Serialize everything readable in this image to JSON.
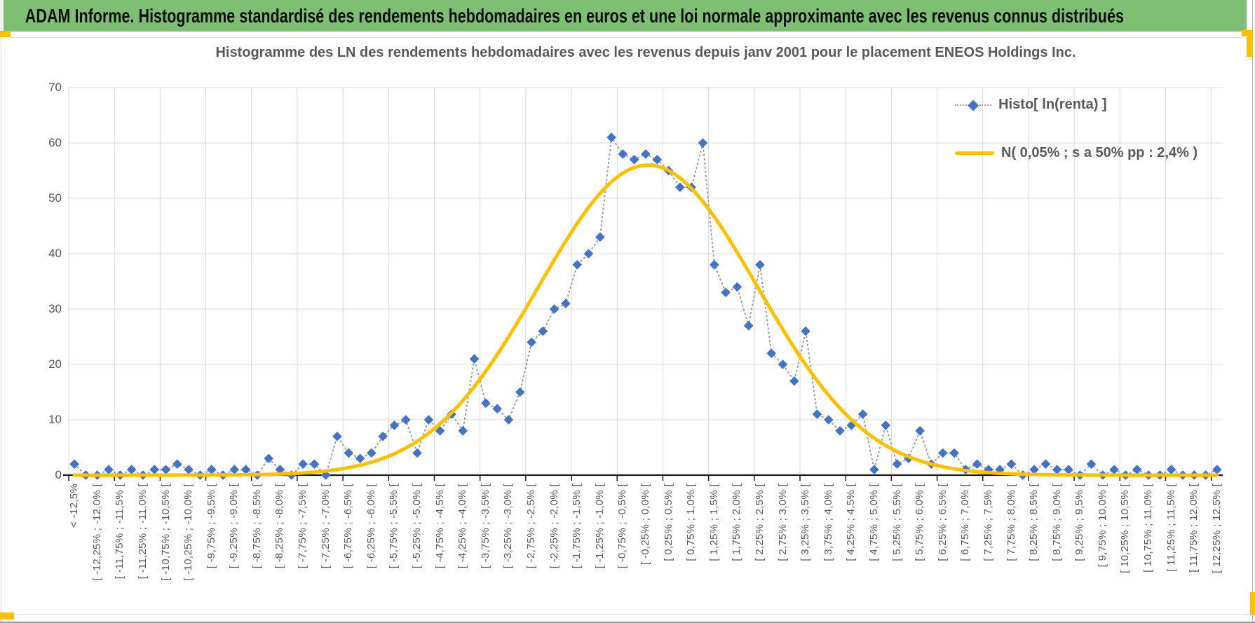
{
  "banner": {
    "title": "ADAM Informe. Histogramme standardisé des rendements hebdomadaires en euros et une loi normale approximante avec les revenus connus distribués",
    "bg_color": "#7EBF73",
    "accent_color": "#FFC000"
  },
  "chart_data": {
    "type": "line",
    "title": "Histogramme des LN des rendements hebdomadaires avec les revenus depuis janv 2001 pour le placement ENEOS Holdings Inc.",
    "ylabel": "",
    "xlabel": "",
    "ylim": [
      0,
      70
    ],
    "y_ticks": [
      0,
      10,
      20,
      30,
      40,
      50,
      60,
      70
    ],
    "grid": {
      "horizontal": true,
      "vertical_every_categories": 4,
      "grid_color": "#d9d9d9",
      "axis_color": "#1a1a1a"
    },
    "legend_position": "upper-right-inside",
    "x_label_every": 2,
    "x_tick_labels": [
      "< -12,5%",
      "[ -12,25% ; -12,0% [",
      "[ -11,75% ; -11,5% [",
      "[ -11,25% ; -11,0% [",
      "[ -10,75% ; -10,5% [",
      "[ -10,25% ; -10,0% [",
      "[ -9,75% ; -9,5% [",
      "[ -9,25% ; -9,0% [",
      "[ -8,75% ; -8,5% [",
      "[ -8,25% ; -8,0% [",
      "[ -7,75% ; -7,5% [",
      "[ -7,25% ; -7,0% [",
      "[ -6,75% ; -6,5% [",
      "[ -6,25% ; -6,0% [",
      "[ -5,75% ; -5,5% [",
      "[ -5,25% ; -5,0% [",
      "[ -4,75% ; -4,5% [",
      "[ -4,25% ; -4,0% [",
      "[ -3,75% ; -3,5% [",
      "[ -3,25% ; -3,0% [",
      "[ -2,75% ; -2,5% [",
      "[ -2,25% ; -2,0% [",
      "[ -1,75% ; -1,5% [",
      "[ -1,25% ; -1,0% [",
      "[ -0,75% ; -0,5% [",
      "[ -0,25% ; 0,0% [",
      "[ 0,25% ; 0,5% [",
      "[ 0,75% ; 1,0% [",
      "[ 1,25% ; 1,5% [",
      "[ 1,75% ; 2,0% [",
      "[ 2,25% ; 2,5% [",
      "[ 2,75% ; 3,0% [",
      "[ 3,25% ; 3,5% [",
      "[ 3,75% ; 4,0% [",
      "[ 4,25% ; 4,5% [",
      "[ 4,75% ; 5,0% [",
      "[ 5,25% ; 5,5% [",
      "[ 5,75% ; 6,0% [",
      "[ 6,25% ; 6,5% [",
      "[ 6,75% ; 7,0% [",
      "[ 7,25% ; 7,5% [",
      "[ 7,75% ; 8,0% [",
      "[ 8,25% ; 8,5% [",
      "[ 8,75% ; 9,0% [",
      "[ 9,25% ; 9,5% [",
      "[ 9,75% ; 10,0% [",
      "[ 10,25% ; 10,5% [",
      "[ 10,75% ; 11,0% [",
      "[ 11,25% ; 11,5% [",
      "[ 11,75% ; 12,0% [",
      "[ 12,25% ; 12,5% ["
    ],
    "bins": {
      "first_label": "< -12,5%",
      "bin_start_pct": -12.5,
      "bin_width_pct": 0.25,
      "bin_count": 101
    },
    "series": [
      {
        "name": "Histo[ ln(renta) ]",
        "type": "line-markers",
        "marker": "diamond",
        "marker_color": "#4472C4",
        "line_color": "#9e9e9e",
        "line_style": "dotted",
        "values": [
          2,
          0,
          0,
          1,
          0,
          1,
          0,
          1,
          1,
          2,
          1,
          0,
          1,
          0,
          1,
          1,
          0,
          3,
          1,
          0,
          2,
          2,
          0,
          7,
          4,
          3,
          4,
          7,
          9,
          10,
          4,
          10,
          8,
          11,
          8,
          21,
          13,
          12,
          10,
          15,
          24,
          26,
          30,
          31,
          38,
          40,
          43,
          61,
          58,
          57,
          58,
          57,
          55,
          52,
          52,
          60,
          38,
          33,
          34,
          27,
          38,
          22,
          20,
          17,
          26,
          11,
          10,
          8,
          9,
          11,
          1,
          9,
          2,
          3,
          8,
          2,
          4,
          4,
          1,
          2,
          1,
          1,
          2,
          0,
          1,
          2,
          1,
          1,
          0,
          2,
          0,
          1,
          0,
          1,
          0,
          0,
          1,
          0,
          0,
          0,
          1
        ]
      },
      {
        "name": "N( 0,05% ; s a 50% pp : 2,4% )",
        "type": "smooth-line",
        "color": "#FFC000",
        "model": {
          "mean_pct": 0.05,
          "sd_pct": 2.4,
          "peak_height": 56
        }
      }
    ]
  }
}
